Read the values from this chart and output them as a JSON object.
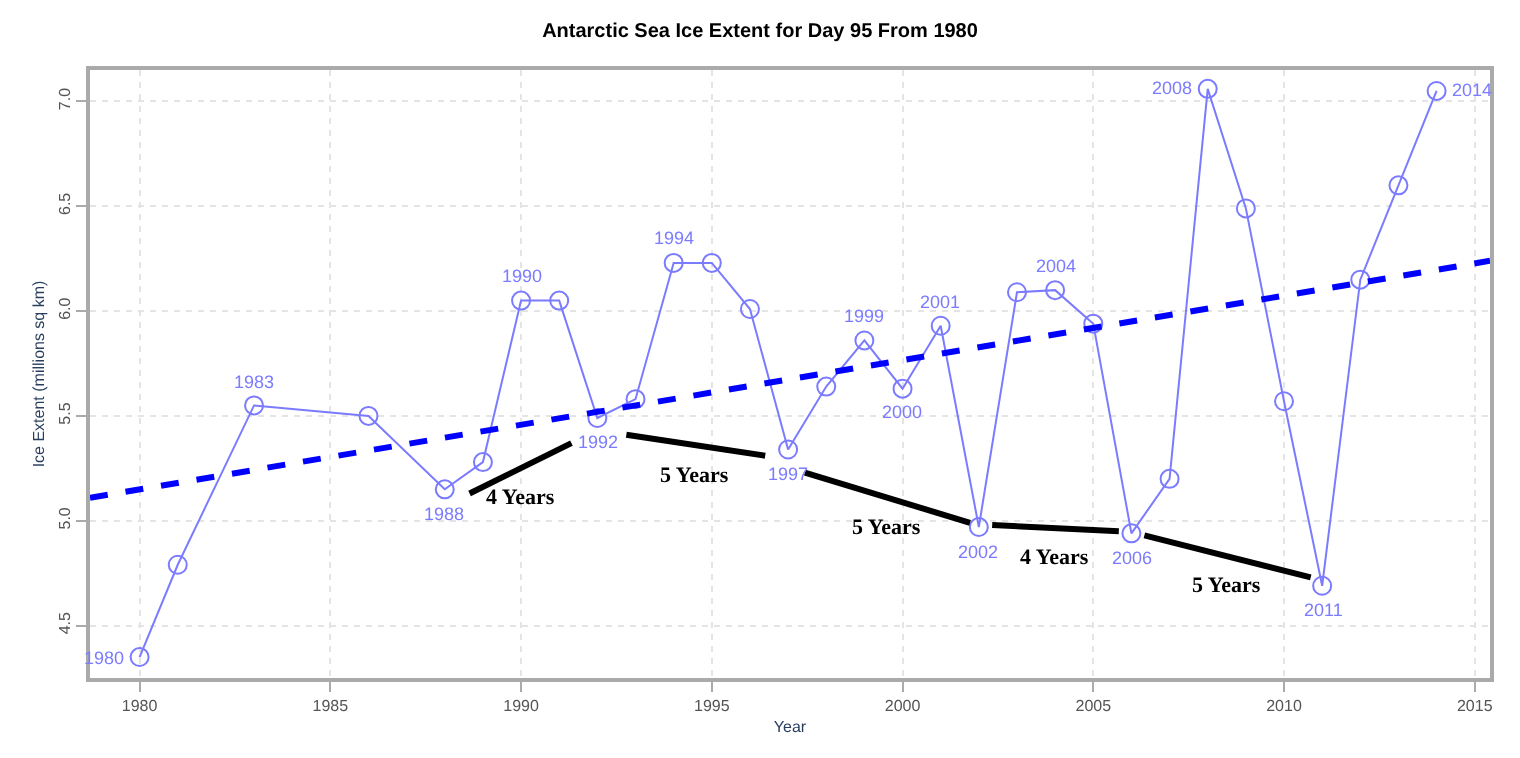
{
  "chart_data": {
    "type": "line",
    "title": "Antarctic Sea Ice Extent for Day 95 From 1980",
    "xlabel": "Year",
    "ylabel": "Ice Extent (millions sq km)",
    "xlim": [
      1978.7,
      2015.4
    ],
    "ylim": [
      4.25,
      7.15
    ],
    "xticks": [
      1980,
      1985,
      1990,
      1995,
      2000,
      2005,
      2010,
      2015
    ],
    "yticks": [
      4.5,
      {
        "value": 5,
        "label": "5.0"
      },
      5.5,
      {
        "value": 6,
        "label": "6.0"
      },
      6.5,
      {
        "value": 7,
        "label": "7.0"
      }
    ],
    "grid": true,
    "marker": "circle",
    "series": [
      {
        "color": "#7b7bff",
        "x": [
          1980,
          1981,
          1983,
          1986,
          1988,
          1989,
          1990,
          1991,
          1992,
          1993,
          1994,
          1995,
          1996,
          1997,
          1998,
          1999,
          2000,
          2001,
          2002,
          2003,
          2004,
          2005,
          2006,
          2007,
          2008,
          2009,
          2010,
          2011,
          2012,
          2013,
          2014
        ],
        "values": [
          4.35,
          4.79,
          5.55,
          5.5,
          5.15,
          5.28,
          6.05,
          6.05,
          5.49,
          5.58,
          6.23,
          6.23,
          6.01,
          5.34,
          5.64,
          5.86,
          5.63,
          5.93,
          4.97,
          6.09,
          6.1,
          5.94,
          4.94,
          5.2,
          7.06,
          6.49,
          5.57,
          4.69,
          6.15,
          6.6,
          7.05
        ]
      },
      {
        "color": "#0000ff",
        "line_style": "dashed",
        "marker": "none",
        "x": [
          1978.7,
          2015.4
        ],
        "values": [
          5.11,
          6.24
        ]
      },
      {
        "color": "#000000",
        "marker": "none",
        "x": [
          1988.65,
          1991.32
        ],
        "values": [
          5.13,
          5.37
        ]
      },
      {
        "color": "#000000",
        "marker": "none",
        "x": [
          1992.76,
          1996.4
        ],
        "values": [
          5.41,
          5.31
        ]
      },
      {
        "color": "#000000",
        "marker": "none",
        "x": [
          1997.44,
          2001.77
        ],
        "values": [
          5.23,
          4.99
        ]
      },
      {
        "color": "#000000",
        "marker": "none",
        "x": [
          2002.35,
          2005.67
        ],
        "values": [
          4.98,
          4.95
        ]
      },
      {
        "color": "#000000",
        "marker": "none",
        "x": [
          2006.34,
          2010.7
        ],
        "values": [
          4.93,
          4.73
        ]
      }
    ],
    "annotations": [
      {
        "text": "1980",
        "x": 1980,
        "y": 4.35
      },
      {
        "text": "1983",
        "x": 1983,
        "y": 5.55
      },
      {
        "text": "1988",
        "x": 1988,
        "y": 5.15
      },
      {
        "text": "1990",
        "x": 1990,
        "y": 6.05
      },
      {
        "text": "1992",
        "x": 1992,
        "y": 5.49
      },
      {
        "text": "1994",
        "x": 1994,
        "y": 6.23
      },
      {
        "text": "1997",
        "x": 1997,
        "y": 5.34
      },
      {
        "text": "1999",
        "x": 1999,
        "y": 5.86
      },
      {
        "text": "2000",
        "x": 2000,
        "y": 5.63
      },
      {
        "text": "2001",
        "x": 2001,
        "y": 5.93
      },
      {
        "text": "2002",
        "x": 2002,
        "y": 4.97
      },
      {
        "text": "2004",
        "x": 2004,
        "y": 6.1
      },
      {
        "text": "2006",
        "x": 2006,
        "y": 4.94
      },
      {
        "text": "2008",
        "x": 2008,
        "y": 7.06
      },
      {
        "text": "2011",
        "x": 2011,
        "y": 4.69
      },
      {
        "text": "2014",
        "x": 2014,
        "y": 7.05
      },
      {
        "text": "4 Years",
        "x": 1990,
        "y": 5.25
      },
      {
        "text": "5 Years",
        "x": 1994.58,
        "y": 5.36
      },
      {
        "text": "5 Years",
        "x": 1999.6,
        "y": 5.11
      },
      {
        "text": "4 Years",
        "x": 2004.01,
        "y": 4.965
      },
      {
        "text": "5 Years",
        "x": 2008.52,
        "y": 4.83
      }
    ]
  }
}
